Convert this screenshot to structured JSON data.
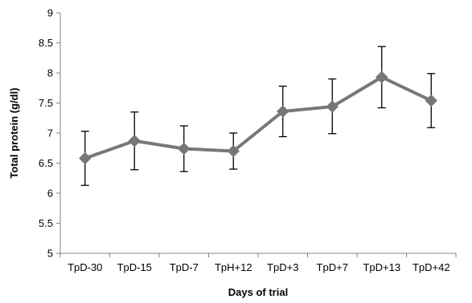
{
  "chart_data": {
    "type": "line",
    "title": "",
    "xlabel": "Days of trial",
    "ylabel": "Total protein (g/dl)",
    "categories": [
      "TpD-30",
      "TpD-15",
      "TpD-7",
      "TpH+12",
      "TpD+3",
      "TpD+7",
      "TpD+13",
      "TpD+42"
    ],
    "ylim": [
      5,
      9
    ],
    "yticks": [
      "5",
      "5.5",
      "6",
      "6.5",
      "7",
      "7.5",
      "8",
      "8.5",
      "9"
    ],
    "grid": false,
    "legend": "none",
    "series": [
      {
        "values": [
          6.58,
          6.87,
          6.74,
          6.7,
          7.36,
          7.44,
          7.93,
          7.54
        ],
        "error_low": [
          6.13,
          6.39,
          6.36,
          6.4,
          6.94,
          6.99,
          7.42,
          7.09
        ],
        "error_high": [
          7.03,
          7.35,
          7.12,
          7.0,
          7.78,
          7.9,
          8.44,
          7.99
        ],
        "color": "#777777",
        "marker": "diamond"
      }
    ],
    "axis_color": "#868686",
    "errorbar_color": "#000000"
  }
}
